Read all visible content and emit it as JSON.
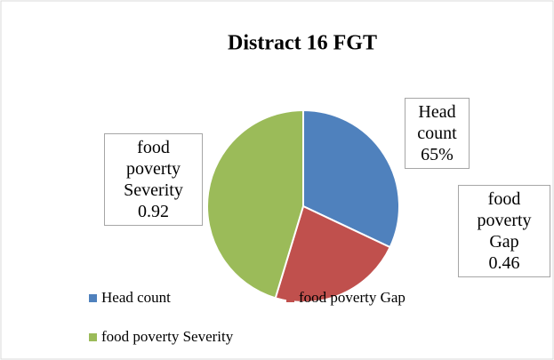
{
  "chart_data": {
    "type": "pie",
    "title": "Distract 16 FGT",
    "categories": [
      "Head count",
      "food poverty Gap",
      "food poverty Severity"
    ],
    "values": [
      0.65,
      0.46,
      0.92
    ],
    "value_labels": [
      "65%",
      "0.46",
      "0.92"
    ],
    "colors": [
      "#4f81bd",
      "#c0504d",
      "#9bbb59"
    ],
    "legend": "bottom"
  }
}
